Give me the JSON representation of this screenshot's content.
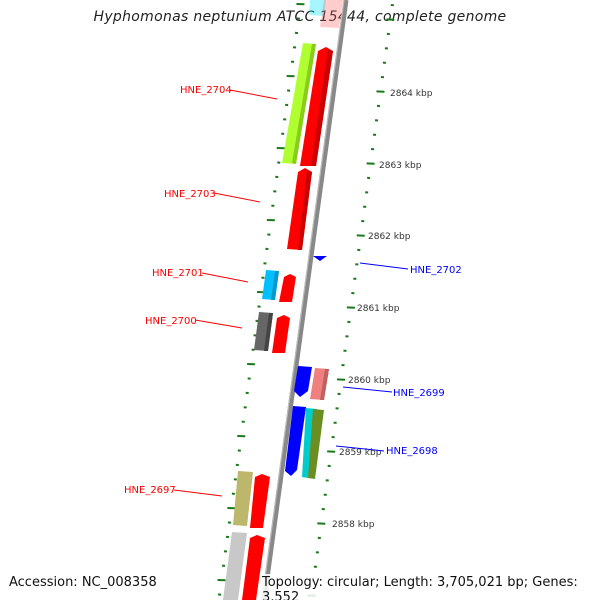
{
  "title": "Hyphomonas neptunium ATCC 15444, complete genome",
  "accession": "Accession: NC_008358",
  "summary": "Topology: circular; Length: 3,705,021 bp; Genes: 3,552",
  "scale_labels": [
    "2864 kbp",
    "2863 kbp",
    "2862 kbp",
    "2861 kbp",
    "2860 kbp",
    "2859 kbp",
    "2858 kbp"
  ],
  "gene_labels_left": [
    "HNE_2704",
    "HNE_2703",
    "HNE_2701",
    "HNE_2700",
    "HNE_2697"
  ],
  "gene_labels_right": [
    "HNE_2702",
    "HNE_2699",
    "HNE_2698"
  ],
  "colors": {
    "forward_label": "#ff0000",
    "reverse_label": "#0000ff",
    "tick": "#1a7a1a",
    "backbone": "#888888"
  }
}
